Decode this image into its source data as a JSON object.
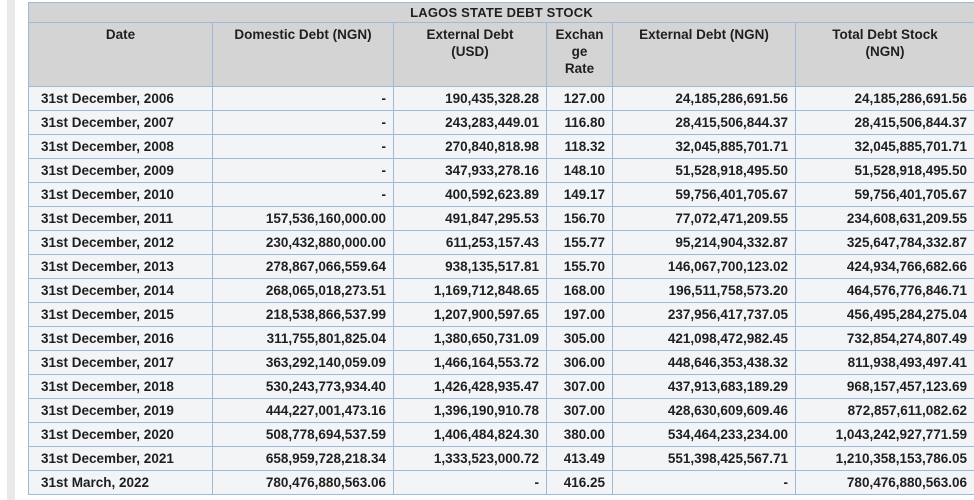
{
  "table": {
    "title": "LAGOS STATE DEBT STOCK",
    "columns": [
      {
        "name": "date",
        "label": "Date"
      },
      {
        "name": "domestic-debt-ngn",
        "label": "Domestic Debt (NGN)"
      },
      {
        "name": "external-debt-usd",
        "label": "External Debt\n(USD)"
      },
      {
        "name": "exchange-rate",
        "label": "Exchan\nge\nRate"
      },
      {
        "name": "external-debt-ngn",
        "label": "External Debt (NGN)"
      },
      {
        "name": "total-debt-stock-ngn",
        "label": "Total Debt Stock\n(NGN)"
      }
    ],
    "rows": [
      [
        "31st December, 2006",
        "-",
        "190,435,328.28",
        "127.00",
        "24,185,286,691.56",
        "24,185,286,691.56"
      ],
      [
        "31st December, 2007",
        "-",
        "243,283,449.01",
        "116.80",
        "28,415,506,844.37",
        "28,415,506,844.37"
      ],
      [
        "31st December, 2008",
        "-",
        "270,840,818.98",
        "118.32",
        "32,045,885,701.71",
        "32,045,885,701.71"
      ],
      [
        "31st December, 2009",
        "-",
        "347,933,278.16",
        "148.10",
        "51,528,918,495.50",
        "51,528,918,495.50"
      ],
      [
        "31st December, 2010",
        "-",
        "400,592,623.89",
        "149.17",
        "59,756,401,705.67",
        "59,756,401,705.67"
      ],
      [
        "31st December, 2011",
        "157,536,160,000.00",
        "491,847,295.53",
        "156.70",
        "77,072,471,209.55",
        "234,608,631,209.55"
      ],
      [
        "31st December, 2012",
        "230,432,880,000.00",
        "611,253,157.43",
        "155.77",
        "95,214,904,332.87",
        "325,647,784,332.87"
      ],
      [
        "31st December, 2013",
        "278,867,066,559.64",
        "938,135,517.81",
        "155.70",
        "146,067,700,123.02",
        "424,934,766,682.66"
      ],
      [
        "31st December, 2014",
        "268,065,018,273.51",
        "1,169,712,848.65",
        "168.00",
        "196,511,758,573.20",
        "464,576,776,846.71"
      ],
      [
        "31st December, 2015",
        "218,538,866,537.99",
        "1,207,900,597.65",
        "197.00",
        "237,956,417,737.05",
        "456,495,284,275.04"
      ],
      [
        "31st December, 2016",
        "311,755,801,825.04",
        "1,380,650,731.09",
        "305.00",
        "421,098,472,982.45",
        "732,854,274,807.49"
      ],
      [
        "31st December, 2017",
        "363,292,140,059.09",
        "1,466,164,553.72",
        "306.00",
        "448,646,353,438.32",
        "811,938,493,497.41"
      ],
      [
        "31st December, 2018",
        "530,243,773,934.40",
        "1,426,428,935.47",
        "307.00",
        "437,913,683,189.29",
        "968,157,457,123.69"
      ],
      [
        "31st December, 2019",
        "444,227,001,473.16",
        "1,396,190,910.78",
        "307.00",
        "428,630,609,609.46",
        "872,857,611,082.62"
      ],
      [
        "31st December, 2020",
        "508,778,694,537.59",
        "1,406,484,824.30",
        "380.00",
        "534,464,233,234.00",
        "1,043,242,927,771.59"
      ],
      [
        "31st December, 2021",
        "658,959,728,218.34",
        "1,333,523,000.72",
        "413.49",
        "551,398,425,567.71",
        "1,210,358,153,786.05"
      ],
      [
        "31st March, 2022",
        "780,476,880,563.06",
        "-",
        "416.25",
        "-",
        "780,476,880,563.06"
      ]
    ]
  },
  "colors": {
    "header_bg": "#d4d4d4",
    "row_bg": "#f3f4f6",
    "grid_border": "#9cbbd9",
    "outer_border": "#7fa9cf",
    "text": "#1f1f1f",
    "page_bg": "#ffffff"
  }
}
